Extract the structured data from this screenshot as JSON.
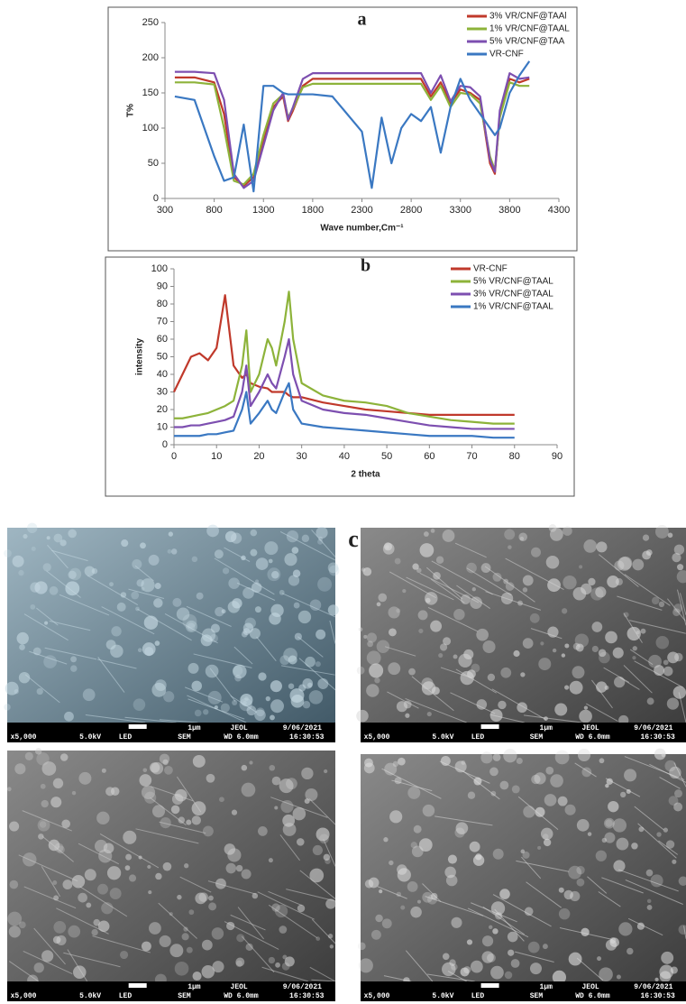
{
  "chart_data": [
    {
      "type": "line",
      "title": "a",
      "x_label": "Wave number,Cm⁻¹",
      "y_label": "T%",
      "x": [
        400,
        600,
        800,
        900,
        1000,
        1100,
        1200,
        1300,
        1400,
        1500,
        1550,
        1600,
        1700,
        1800,
        2000,
        2300,
        2400,
        2500,
        2600,
        2700,
        2800,
        2900,
        3000,
        3100,
        3200,
        3300,
        3400,
        3500,
        3600,
        3650,
        3700,
        3800,
        3900,
        4000
      ],
      "xlim": [
        300,
        4300
      ],
      "xticks": [
        300,
        800,
        1300,
        1800,
        2300,
        2800,
        3300,
        3800,
        4300
      ],
      "ylim": [
        0,
        250
      ],
      "yticks": [
        0,
        50,
        100,
        150,
        200,
        250
      ],
      "legend": "upper right",
      "series": [
        {
          "name": "3% VR/CNF@TAAl",
          "color": "#c0392b",
          "values": [
            172,
            172,
            165,
            120,
            30,
            18,
            30,
            80,
            130,
            145,
            110,
            125,
            160,
            170,
            170,
            170,
            170,
            170,
            170,
            170,
            170,
            170,
            145,
            165,
            135,
            155,
            150,
            140,
            50,
            35,
            120,
            170,
            165,
            170
          ]
        },
        {
          "name": "1% VR/CNF@TAAL",
          "color": "#8db33a",
          "values": [
            165,
            165,
            162,
            100,
            25,
            20,
            35,
            90,
            135,
            148,
            115,
            128,
            158,
            163,
            163,
            163,
            163,
            163,
            163,
            163,
            163,
            163,
            140,
            160,
            130,
            150,
            148,
            135,
            60,
            40,
            115,
            165,
            160,
            160
          ]
        },
        {
          "name": "5% VR/CNF@TAA",
          "color": "#7d4fb0",
          "values": [
            180,
            180,
            178,
            140,
            35,
            15,
            25,
            75,
            125,
            150,
            112,
            130,
            170,
            178,
            178,
            178,
            178,
            178,
            178,
            178,
            178,
            178,
            150,
            175,
            138,
            160,
            158,
            145,
            55,
            38,
            125,
            178,
            170,
            172
          ]
        },
        {
          "name": "VR-CNF",
          "color": "#3a78c2",
          "values": [
            145,
            140,
            60,
            25,
            30,
            105,
            10,
            160,
            160,
            150,
            148,
            148,
            148,
            148,
            145,
            95,
            15,
            115,
            50,
            100,
            120,
            110,
            130,
            65,
            130,
            170,
            140,
            120,
            100,
            90,
            100,
            150,
            175,
            195
          ]
        }
      ]
    },
    {
      "type": "line",
      "title": "b",
      "x_label": "2 theta",
      "y_label": "intensity",
      "x": [
        0,
        2,
        4,
        6,
        8,
        10,
        12,
        14,
        16,
        17,
        18,
        20,
        22,
        23,
        24,
        26,
        27,
        28,
        30,
        35,
        40,
        45,
        50,
        55,
        60,
        65,
        70,
        75,
        80
      ],
      "xlim": [
        0,
        90
      ],
      "xticks": [
        0,
        10,
        20,
        30,
        40,
        50,
        60,
        70,
        80,
        90
      ],
      "ylim": [
        0,
        100
      ],
      "yticks": [
        0,
        10,
        20,
        30,
        40,
        50,
        60,
        70,
        80,
        90,
        100
      ],
      "legend": "upper right",
      "series": [
        {
          "name": "VR-CNF",
          "color": "#c0392b",
          "values": [
            30,
            40,
            50,
            52,
            48,
            55,
            85,
            45,
            38,
            40,
            35,
            33,
            32,
            30,
            30,
            30,
            28,
            27,
            27,
            24,
            22,
            20,
            19,
            18,
            17,
            17,
            17,
            17,
            17
          ]
        },
        {
          "name": "5% VR/CNF@TAAL",
          "color": "#8db33a",
          "values": [
            15,
            15,
            16,
            17,
            18,
            20,
            22,
            25,
            45,
            65,
            30,
            40,
            60,
            55,
            45,
            70,
            87,
            60,
            35,
            28,
            25,
            24,
            22,
            18,
            16,
            14,
            13,
            12,
            12
          ]
        },
        {
          "name": "3% VR/CNF@TAAL",
          "color": "#7d4fb0",
          "values": [
            10,
            10,
            11,
            11,
            12,
            13,
            14,
            16,
            30,
            45,
            22,
            30,
            40,
            35,
            32,
            50,
            60,
            40,
            25,
            20,
            18,
            17,
            15,
            13,
            11,
            10,
            9,
            9,
            9
          ]
        },
        {
          "name": "1% VR/CNF@TAAL",
          "color": "#3a78c2",
          "values": [
            5,
            5,
            5,
            5,
            6,
            6,
            7,
            8,
            20,
            30,
            12,
            18,
            25,
            20,
            18,
            30,
            35,
            20,
            12,
            10,
            9,
            8,
            7,
            6,
            5,
            5,
            5,
            4,
            4
          ]
        }
      ]
    }
  ],
  "panel_label": "c",
  "images": [
    {
      "mag": "x5,000",
      "kv": "5.0kV",
      "mode": "LED",
      "sem": "SEM",
      "scale": "1μm",
      "maker": "JEOL",
      "wd": "WD 6.0mm",
      "date": "9/06/2021",
      "time": "16:30:53"
    },
    {
      "mag": "x5,000",
      "kv": "5.0kV",
      "mode": "LED",
      "sem": "SEM",
      "scale": "1μm",
      "maker": "JEOL",
      "wd": "WD 6.0mm",
      "date": "9/06/2021",
      "time": "16:30:53"
    },
    {
      "mag": "x5,000",
      "kv": "5.0kV",
      "mode": "LED",
      "sem": "SEM",
      "scale": "1μm",
      "maker": "JEOL",
      "wd": "WD 6.0mm",
      "date": "9/06/2021",
      "time": "16:30:53"
    },
    {
      "mag": "x5,000",
      "kv": "5.0kV",
      "mode": "LED",
      "sem": "SEM",
      "scale": "1μm",
      "maker": "JEOL",
      "wd": "WD 6.0mm",
      "date": "9/06/2021",
      "time": "16:30:53"
    }
  ]
}
